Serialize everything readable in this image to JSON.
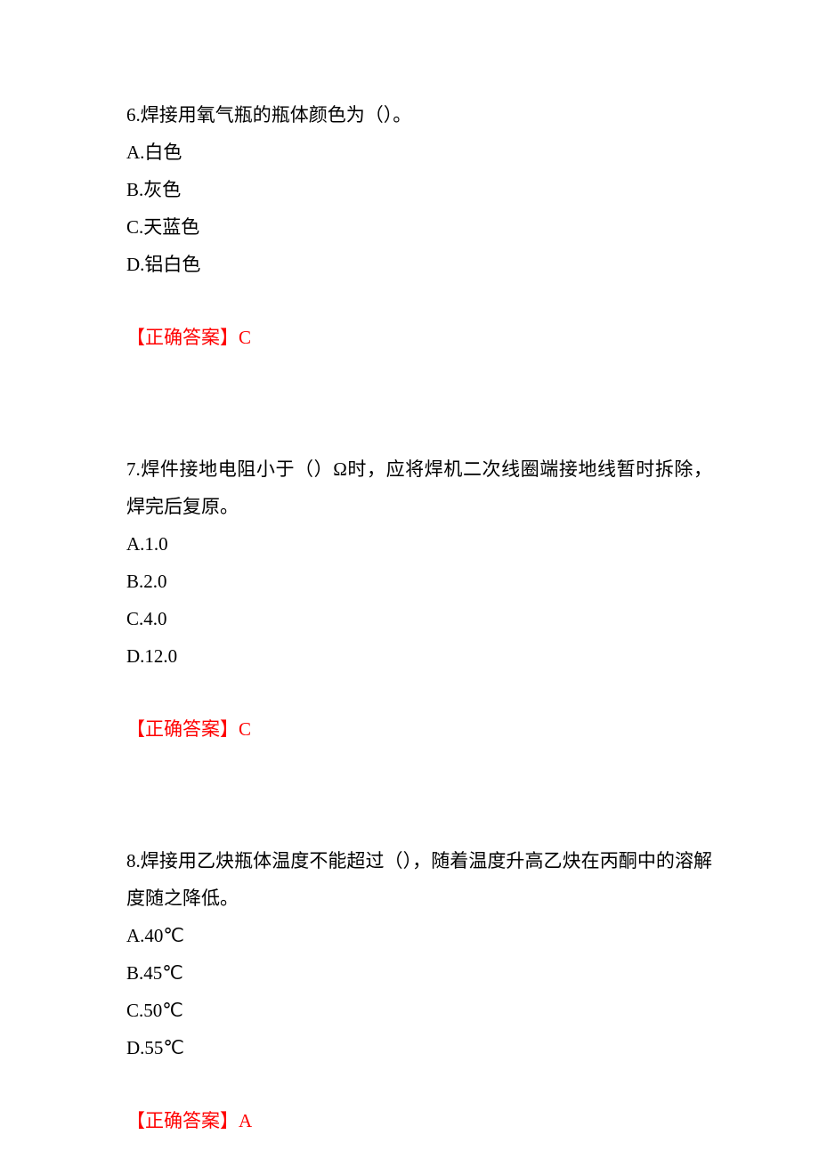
{
  "page": {
    "background_color": "#ffffff",
    "text_color": "#000000",
    "answer_color": "#ff0000",
    "font_family": "SimSun",
    "font_size_pt": 16,
    "line_height": 2.0
  },
  "questions": [
    {
      "number": "6",
      "stem": "6.焊接用氧气瓶的瓶体颜色为（）。",
      "options": {
        "A": "A.白色",
        "B": "B.灰色",
        "C": "C.天蓝色",
        "D": "D.铝白色"
      },
      "answer_label": "【正确答案】",
      "answer_value": "C"
    },
    {
      "number": "7",
      "stem": "7.焊件接地电阻小于（）Ω时，应将焊机二次线圈端接地线暂时拆除，焊完后复原。",
      "options": {
        "A": "A.1.0",
        "B": "B.2.0",
        "C": "C.4.0",
        "D": "D.12.0"
      },
      "answer_label": "【正确答案】",
      "answer_value": "C"
    },
    {
      "number": "8",
      "stem": "8.焊接用乙炔瓶体温度不能超过（），随着温度升高乙炔在丙酮中的溶解度随之降低。",
      "options": {
        "A": "A.40℃",
        "B": "B.45℃",
        "C": "C.50℃",
        "D": "D.55℃"
      },
      "answer_label": "【正确答案】",
      "answer_value": "A"
    }
  ]
}
